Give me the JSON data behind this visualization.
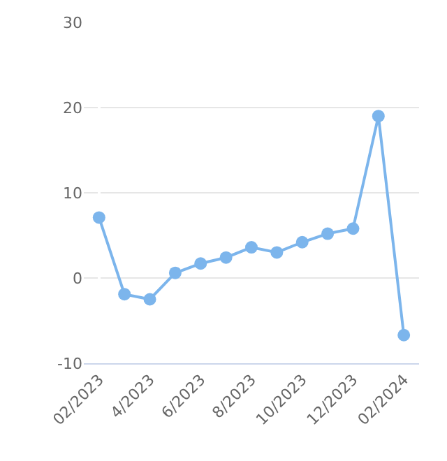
{
  "chart_data": {
    "type": "line",
    "categories": [
      "02/2023",
      null,
      "4/2023",
      null,
      "6/2023",
      null,
      "8/2023",
      null,
      "10/2023",
      null,
      "12/2023",
      null,
      "02/2024"
    ],
    "series": [
      {
        "color": "#7cb5ec",
        "values": [
          7.1,
          -1.9,
          -2.5,
          0.6,
          1.7,
          2.4,
          3.6,
          3.0,
          4.2,
          5.2,
          5.8,
          19.0,
          -6.7
        ]
      }
    ],
    "ylim": [
      -10,
      30
    ],
    "yticks": [
      -10,
      0,
      10,
      20,
      30
    ],
    "grid": "y",
    "marker": "circle",
    "line_style": "solid",
    "legend": false
  }
}
